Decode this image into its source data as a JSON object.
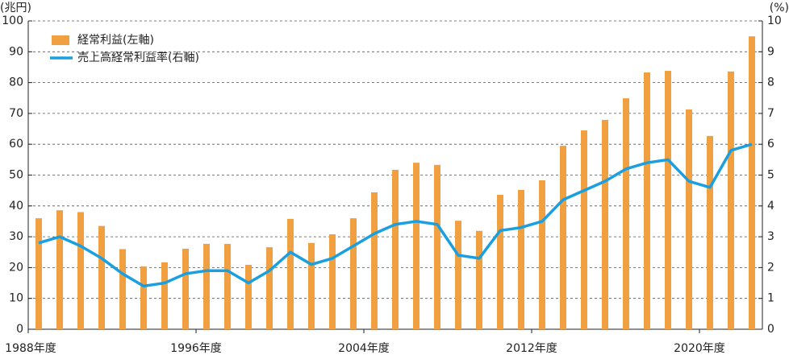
{
  "chart_data": {
    "type": "bar_line",
    "ylabel": "(兆円)",
    "y2label": "(%)",
    "categories": [
      "1988年度",
      null,
      null,
      null,
      null,
      null,
      null,
      null,
      "1996年度",
      null,
      null,
      null,
      null,
      null,
      null,
      null,
      "2004年度",
      null,
      null,
      null,
      null,
      null,
      null,
      null,
      "2012年度",
      null,
      null,
      null,
      null,
      null,
      null,
      null,
      "2020年度",
      null,
      null
    ],
    "series": [
      {
        "name": "経常利益(左軸)",
        "color": "#f0a040",
        "kind": "bar",
        "values": [
          36,
          38.6,
          38,
          33.5,
          26,
          20.4,
          21.7,
          26.1,
          27.7,
          27.7,
          20.9,
          26.6,
          35.8,
          28,
          30.8,
          36,
          44.4,
          51.7,
          54,
          53.3,
          35.2,
          31.9,
          43.6,
          45.2,
          48.3,
          59.5,
          64.5,
          67.9,
          74.9,
          83.3,
          83.8,
          71.3,
          62.7,
          83.6,
          95
        ]
      },
      {
        "name": "売上高経常利益率(右軸)",
        "color": "#1a9fe0",
        "kind": "line",
        "axis": "y2",
        "values": [
          2.8,
          3.0,
          2.7,
          2.3,
          1.8,
          1.4,
          1.5,
          1.8,
          1.9,
          1.9,
          1.5,
          1.9,
          2.5,
          2.1,
          2.3,
          2.7,
          3.1,
          3.4,
          3.5,
          3.4,
          2.4,
          2.3,
          3.2,
          3.3,
          3.5,
          4.2,
          4.5,
          4.8,
          5.2,
          5.4,
          5.5,
          4.8,
          4.6,
          5.8,
          6.0
        ]
      }
    ],
    "ylim": [
      0,
      100
    ],
    "yticks": [
      0,
      10,
      20,
      30,
      40,
      50,
      60,
      70,
      80,
      90,
      100
    ],
    "y2lim": [
      0,
      10
    ],
    "y2ticks": [
      0,
      1,
      2,
      3,
      4,
      5,
      6,
      7,
      8,
      9,
      10
    ],
    "grid": true,
    "legend": "upper left"
  }
}
